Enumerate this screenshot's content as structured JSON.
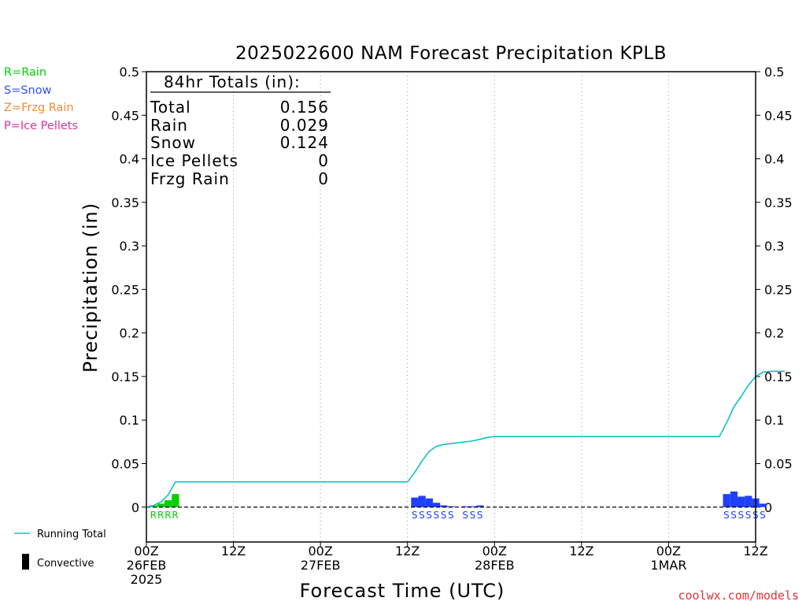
{
  "chart_data": {
    "type": "bar",
    "title": "2025022600 NAM Forecast Precipitation KPLB",
    "xlabel": "Forecast Time (UTC)",
    "ylabel": "Precipitation (in)",
    "ylim": [
      -0.04,
      0.5
    ],
    "y_ticks": [
      "0.5",
      "0.45",
      "0.4",
      "0.35",
      "0.3",
      "0.25",
      "0.2",
      "0.15",
      "0.1",
      "0.05",
      "0"
    ],
    "xlim_hours": [
      0,
      84
    ],
    "x_ticks": [
      {
        "hour": 0,
        "line1": "00Z",
        "line2": "26FEB",
        "line3": "2025"
      },
      {
        "hour": 12,
        "line1": "12Z",
        "line2": "",
        "line3": ""
      },
      {
        "hour": 24,
        "line1": "00Z",
        "line2": "27FEB",
        "line3": ""
      },
      {
        "hour": 36,
        "line1": "12Z",
        "line2": "",
        "line3": ""
      },
      {
        "hour": 48,
        "line1": "00Z",
        "line2": "28FEB",
        "line3": ""
      },
      {
        "hour": 60,
        "line1": "12Z",
        "line2": "",
        "line3": ""
      },
      {
        "hour": 72,
        "line1": "00Z",
        "line2": "1MAR",
        "line3": ""
      },
      {
        "hour": 84,
        "line1": "12Z",
        "line2": "",
        "line3": ""
      }
    ],
    "grid": "vertical-dotted",
    "series": [
      {
        "name": "Rain",
        "color": "#00d000",
        "hours": [
          1,
          2,
          3,
          4
        ],
        "values": [
          0.002,
          0.004,
          0.008,
          0.015
        ],
        "labels": [
          "R",
          "R",
          "R",
          "R"
        ]
      },
      {
        "name": "Snow",
        "color": "#1f3fff",
        "hours": [
          37,
          38,
          39,
          40,
          41,
          42,
          44,
          45,
          46,
          80,
          81,
          82,
          83,
          84,
          85
        ],
        "values": [
          0.011,
          0.013,
          0.01,
          0.005,
          0.002,
          0.001,
          0.001,
          0.001,
          0.002,
          0.015,
          0.018,
          0.012,
          0.013,
          0.01,
          0.004
        ],
        "labels": [
          "S",
          "S",
          "S",
          "S",
          "S",
          "S",
          "S",
          "S",
          "S",
          "S",
          "S",
          "S",
          "S",
          "S",
          "S"
        ]
      },
      {
        "name": "Running Total",
        "type": "line",
        "color": "#10c0c0",
        "hours": [
          0,
          1,
          2,
          3,
          4,
          5,
          6,
          12,
          18,
          24,
          30,
          35,
          36,
          37,
          38,
          39,
          40,
          41,
          42,
          43,
          44,
          45,
          46,
          47,
          48,
          54,
          60,
          66,
          72,
          78,
          79,
          80,
          81,
          82,
          83,
          84,
          85,
          86,
          87,
          88
        ],
        "values": [
          0,
          0.002,
          0.006,
          0.014,
          0.029,
          0.029,
          0.029,
          0.029,
          0.029,
          0.029,
          0.029,
          0.029,
          0.029,
          0.04,
          0.053,
          0.064,
          0.07,
          0.072,
          0.073,
          0.074,
          0.075,
          0.076,
          0.078,
          0.08,
          0.081,
          0.081,
          0.081,
          0.081,
          0.081,
          0.081,
          0.081,
          0.097,
          0.115,
          0.127,
          0.14,
          0.15,
          0.155,
          0.156,
          0.156,
          0.156
        ]
      }
    ]
  },
  "totals_box": {
    "heading": "84hr Totals (in):",
    "rows": [
      {
        "label": "Total",
        "value": "0.156"
      },
      {
        "label": "Rain",
        "value": "0.029"
      },
      {
        "label": "Snow",
        "value": "0.124"
      },
      {
        "label": "Ice Pellets",
        "value": "0"
      },
      {
        "label": "Frzg Rain",
        "value": "0"
      }
    ]
  },
  "type_legend": [
    {
      "text": "R=Rain",
      "color": "#00d000"
    },
    {
      "text": "S=Snow",
      "color": "#3050ff"
    },
    {
      "text": "Z=Frzg Rain",
      "color": "#f08a30"
    },
    {
      "text": "P=Ice Pellets",
      "color": "#e0309a"
    }
  ],
  "bottom_legend": {
    "running_total": "Running Total",
    "convective": "Convective"
  },
  "credit": "coolwx.com/models"
}
